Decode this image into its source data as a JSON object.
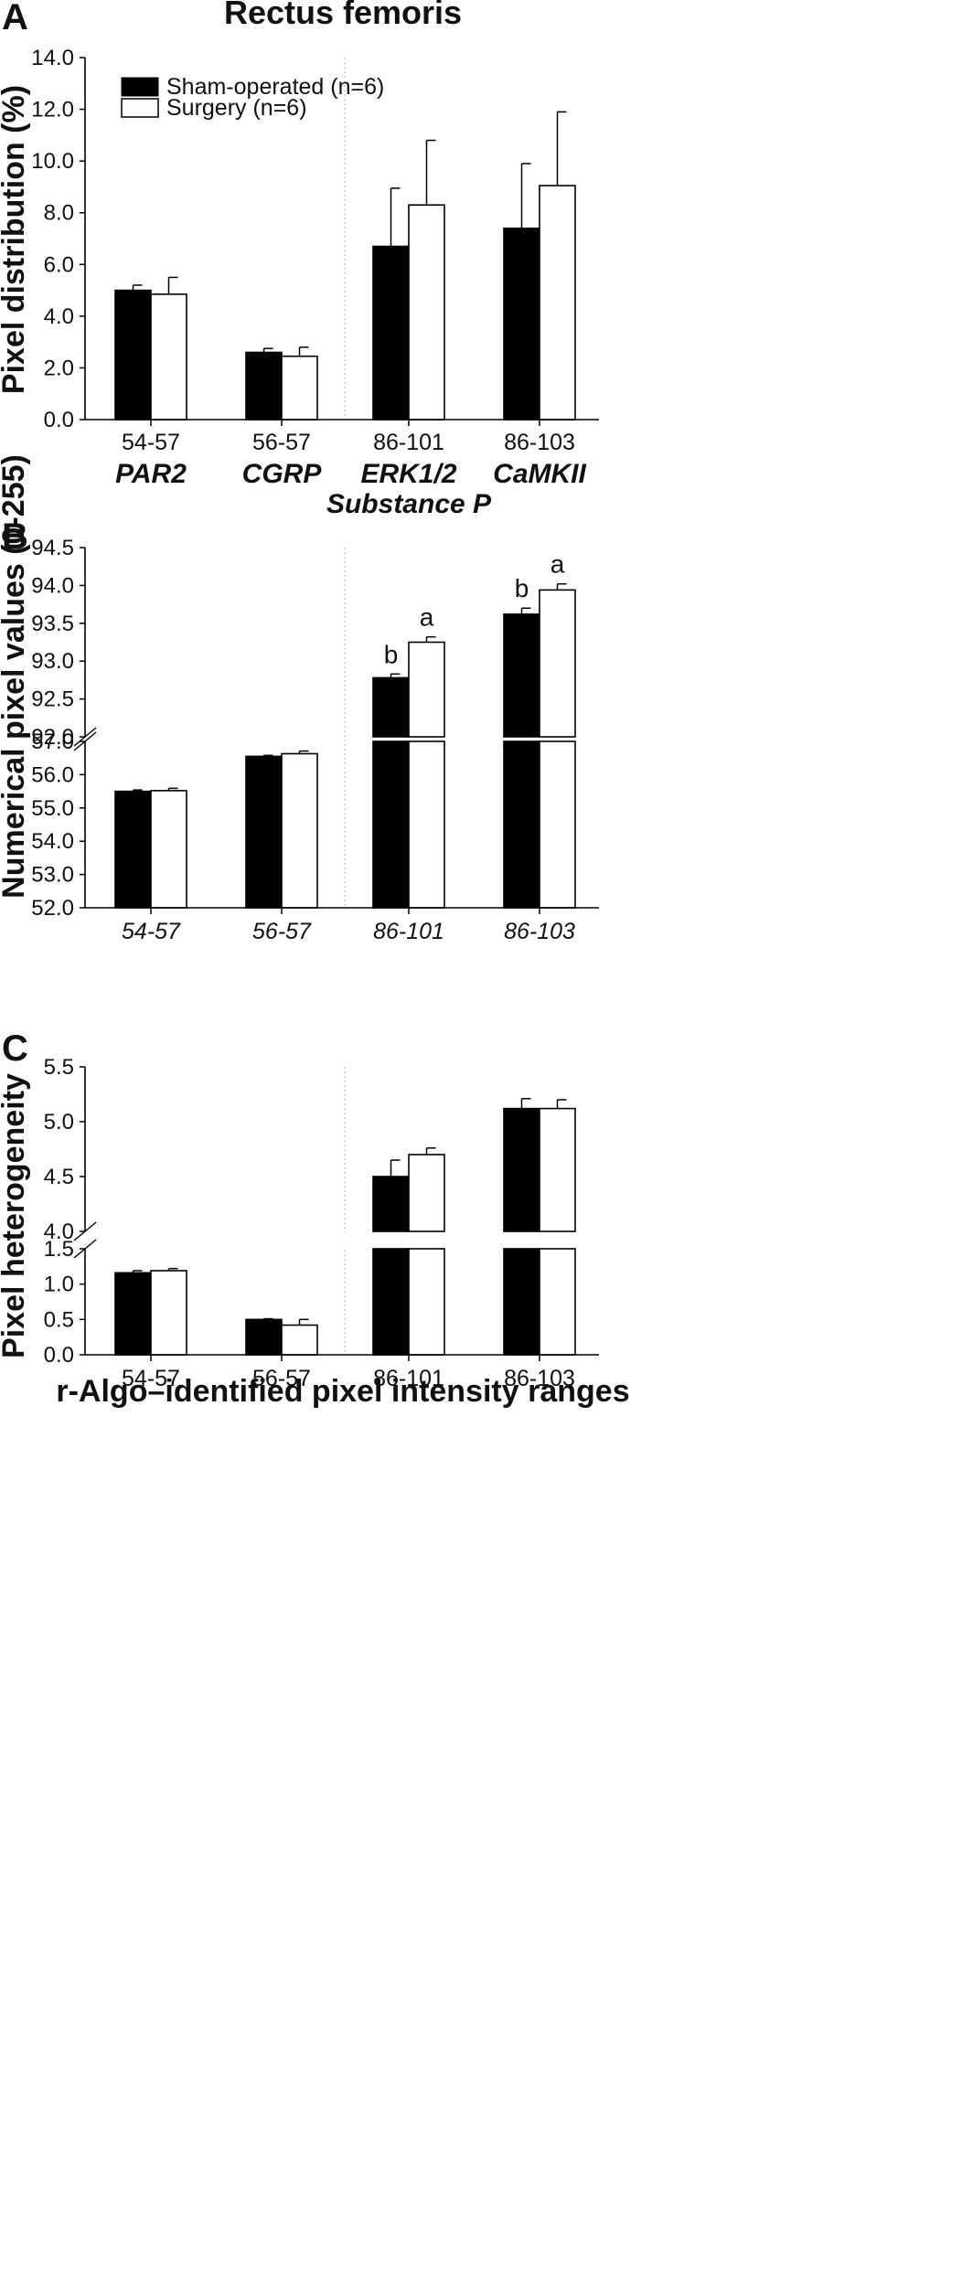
{
  "panels": {
    "a": {
      "letter": "A",
      "title": "Rectus femoris"
    },
    "b": {
      "letter": "B"
    },
    "c": {
      "letter": "C",
      "xlabel": "r-Algo–identified pixel intensity ranges"
    }
  },
  "legend": {
    "sham": "Sham-operated (n=6)",
    "surgery": "Surgery (n=6)"
  },
  "colors": {
    "sham": "#000000",
    "surgery": "#ffffff",
    "outline": "#000000",
    "divider": "#bdbdbd"
  },
  "chart_data": [
    {
      "id": "A",
      "type": "bar",
      "ylabel": "Pixel distribution (%)",
      "categories": [
        "54-57",
        "56-57",
        "86-101",
        "86-103"
      ],
      "markers": [
        "PAR2",
        "CGRP",
        "ERK1/2\nSubstance P",
        "CaMKII"
      ],
      "series": [
        {
          "name": "Sham-operated (n=6)",
          "values": [
            5.0,
            2.6,
            6.7,
            7.4
          ],
          "errors": [
            0.2,
            0.15,
            2.25,
            2.5
          ]
        },
        {
          "name": "Surgery (n=6)",
          "values": [
            4.85,
            2.45,
            8.3,
            9.05
          ],
          "errors": [
            0.65,
            0.35,
            2.5,
            2.85
          ]
        }
      ],
      "ylim": [
        0,
        14
      ],
      "yticks": [
        "0.0",
        "2.0",
        "4.0",
        "6.0",
        "8.0",
        "10.0",
        "12.0",
        "14.0"
      ],
      "legend_position": "top-left"
    },
    {
      "id": "B",
      "type": "bar",
      "ylabel": "Numerical pixel values (0-255)",
      "categories": [
        "54-57",
        "56-57",
        "86-101",
        "86-103"
      ],
      "series": [
        {
          "name": "Sham-operated (n=6)",
          "values": [
            55.5,
            56.55,
            92.78,
            93.62
          ],
          "errors": [
            0.04,
            0.03,
            0.05,
            0.08
          ]
        },
        {
          "name": "Surgery (n=6)",
          "values": [
            55.52,
            56.63,
            93.25,
            93.94
          ],
          "errors": [
            0.07,
            0.08,
            0.07,
            0.08
          ]
        }
      ],
      "annotations": [
        {
          "category": "86-101",
          "series": 0,
          "text": "b"
        },
        {
          "category": "86-101",
          "series": 1,
          "text": "a"
        },
        {
          "category": "86-103",
          "series": 0,
          "text": "b"
        },
        {
          "category": "86-103",
          "series": 1,
          "text": "a"
        }
      ],
      "broken_axis": {
        "lower": [
          52,
          57
        ],
        "upper": [
          92,
          94.5
        ]
      },
      "yticks_lower": [
        "52.0",
        "53.0",
        "54.0",
        "55.0",
        "56.0",
        "57.0"
      ],
      "yticks_upper": [
        "92.0",
        "92.5",
        "93.0",
        "93.5",
        "94.0",
        "94.5"
      ]
    },
    {
      "id": "C",
      "type": "bar",
      "ylabel": "Pixel heterogeneity",
      "xlabel": "r-Algo–identified pixel intensity ranges",
      "categories": [
        "54-57",
        "56-57",
        "86-101",
        "86-103"
      ],
      "series": [
        {
          "name": "Sham-operated (n=6)",
          "values": [
            1.16,
            0.5,
            4.5,
            5.12
          ],
          "errors": [
            0.03,
            0.01,
            0.15,
            0.09
          ]
        },
        {
          "name": "Surgery (n=6)",
          "values": [
            1.19,
            0.42,
            4.7,
            5.12
          ],
          "errors": [
            0.03,
            0.08,
            0.06,
            0.08
          ]
        }
      ],
      "broken_axis": {
        "lower": [
          0,
          1.5
        ],
        "upper": [
          4.0,
          5.5
        ]
      },
      "yticks_lower": [
        "0.0",
        "0.5",
        "1.0",
        "1.5"
      ],
      "yticks_upper": [
        "4.0",
        "4.5",
        "5.0",
        "5.5"
      ]
    }
  ]
}
